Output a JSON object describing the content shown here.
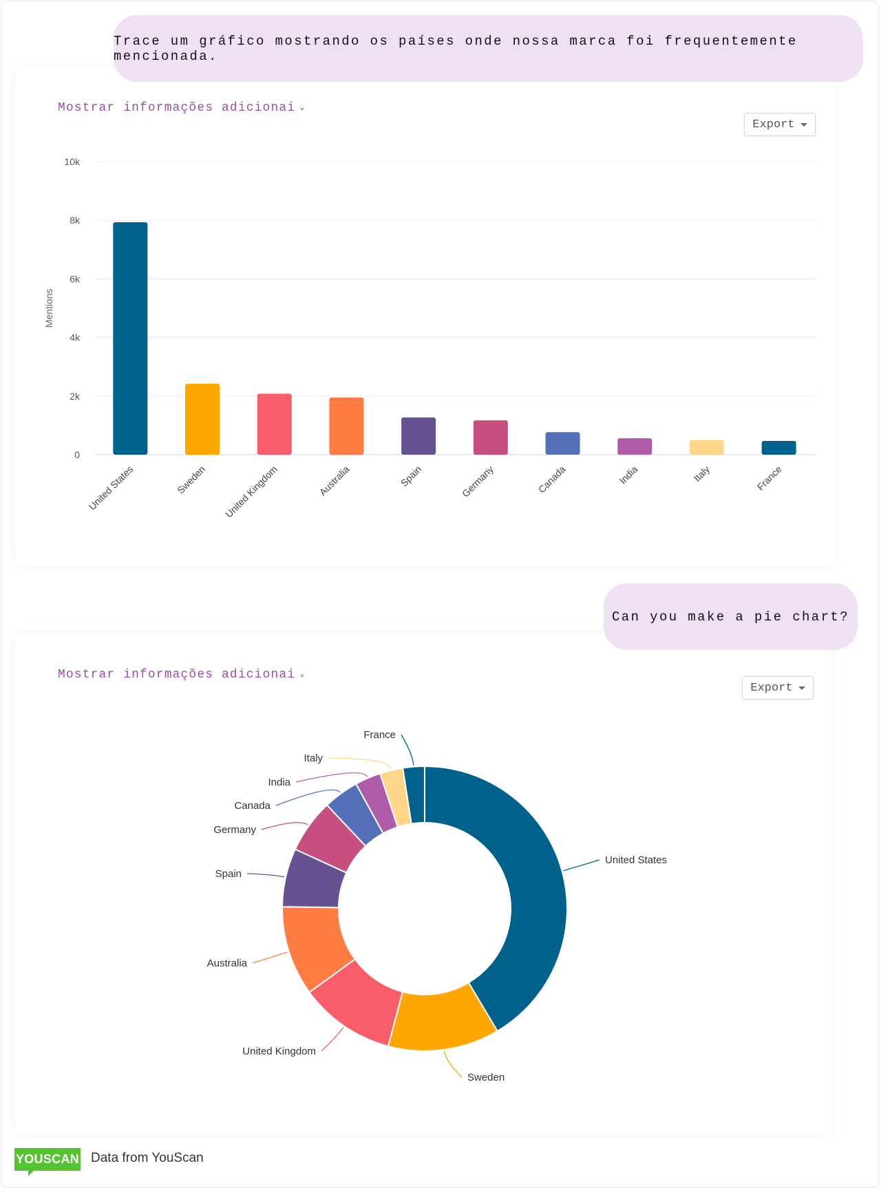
{
  "messages": [
    {
      "text": "Trace um gráfico mostrando os países onde nossa marca foi frequentemente mencionada."
    },
    {
      "text": "Can you make a pie chart?"
    }
  ],
  "cards": [
    {
      "more_label": "Mostrar informações adicionai",
      "export_label": "Export"
    },
    {
      "more_label": "Mostrar informações adicionai",
      "export_label": "Export"
    }
  ],
  "footer": {
    "logo_text": "YOUSCAN",
    "source": "Data from YouScan"
  },
  "chart_data": [
    {
      "type": "bar",
      "categories": [
        "United States",
        "Sweden",
        "United Kingdom",
        "Australia",
        "Spain",
        "Germany",
        "Canada",
        "India",
        "Italy",
        "France"
      ],
      "values": [
        7930,
        2420,
        2080,
        1950,
        1270,
        1170,
        770,
        560,
        500,
        470
      ],
      "colors": [
        "#00628b",
        "#ffa600",
        "#f95d6a",
        "#ff7c43",
        "#665191",
        "#c64f7f",
        "#5470b9",
        "#b05da9",
        "#ffd68a",
        "#00628b"
      ],
      "ylabel": "Mentions",
      "ylim": [
        0,
        10000
      ],
      "yticks": [
        "0",
        "2k",
        "4k",
        "6k",
        "8k",
        "10k"
      ],
      "grid": true
    },
    {
      "type": "pie",
      "donut": true,
      "categories": [
        "United States",
        "Sweden",
        "United Kingdom",
        "Australia",
        "Spain",
        "Germany",
        "Canada",
        "India",
        "Italy",
        "France"
      ],
      "values": [
        7930,
        2420,
        2080,
        1950,
        1270,
        1170,
        770,
        560,
        500,
        470
      ],
      "colors": [
        "#00628b",
        "#ffa600",
        "#f95d6a",
        "#ff7c43",
        "#665191",
        "#c64f7f",
        "#5470b9",
        "#b05da9",
        "#ffd68a",
        "#00628b"
      ]
    }
  ]
}
